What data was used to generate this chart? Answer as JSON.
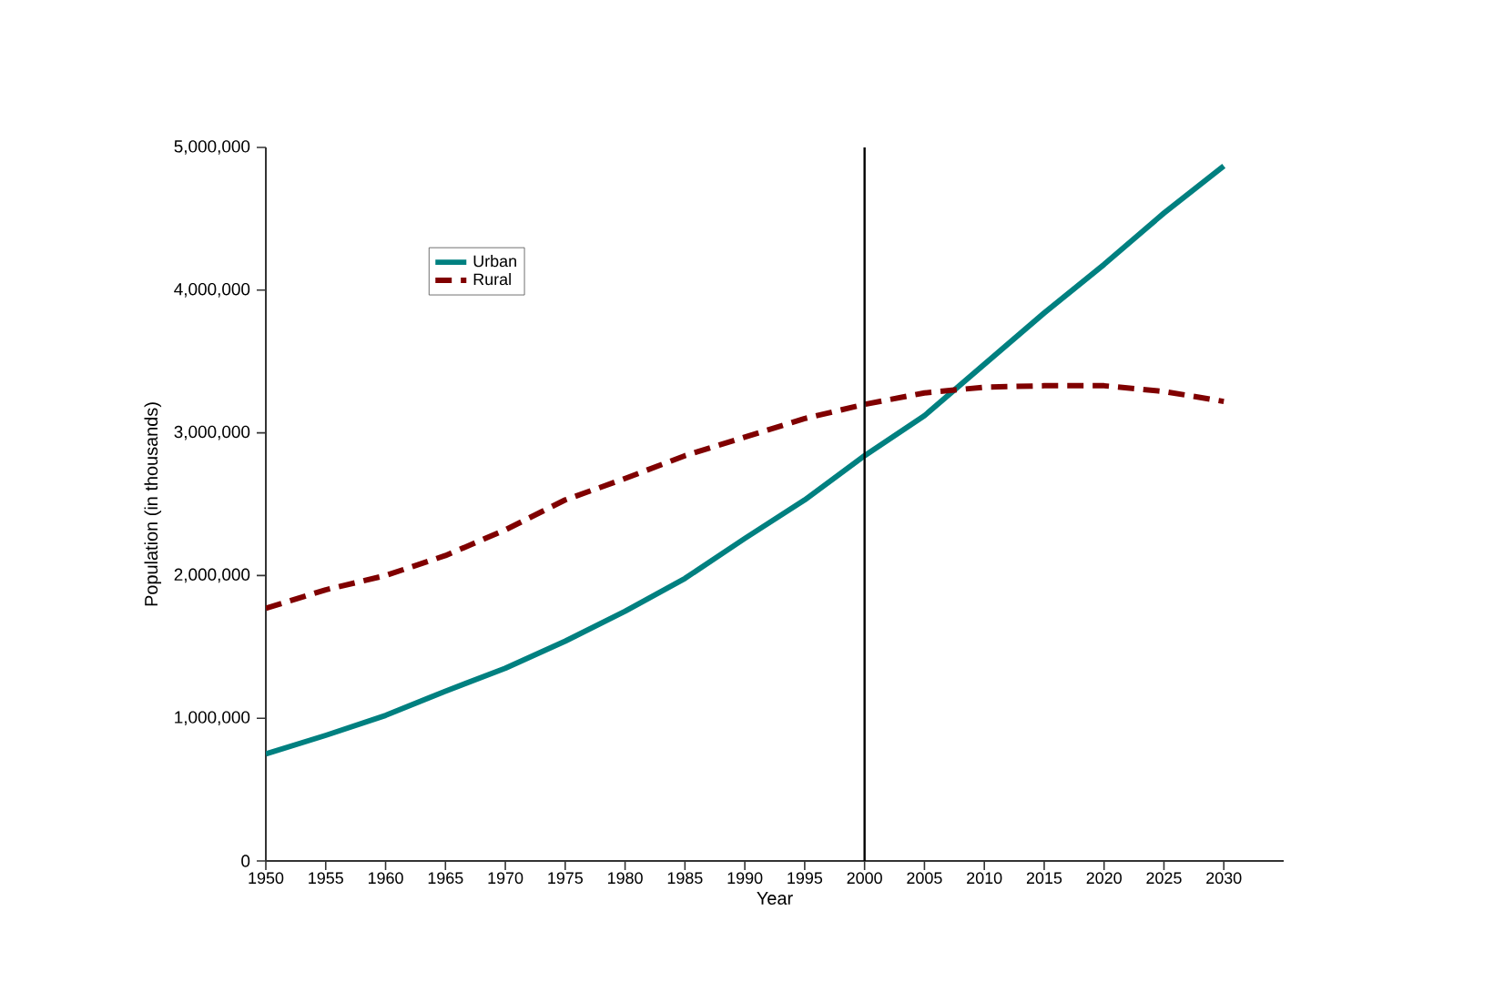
{
  "chart_data": {
    "type": "line",
    "xlabel": "Year",
    "ylabel": "Population (in thousands)",
    "x": [
      1950,
      1955,
      1960,
      1965,
      1970,
      1975,
      1980,
      1985,
      1990,
      1995,
      2000,
      2005,
      2010,
      2015,
      2020,
      2025,
      2030
    ],
    "series": [
      {
        "name": "Urban",
        "color": "#008080",
        "line_style": "solid",
        "values": [
          750000,
          880000,
          1020000,
          1190000,
          1350000,
          1540000,
          1750000,
          1980000,
          2260000,
          2530000,
          2840000,
          3120000,
          3480000,
          3840000,
          4180000,
          4540000,
          4870000
        ]
      },
      {
        "name": "Rural",
        "color": "#800000",
        "line_style": "dashed",
        "values": [
          1770000,
          1900000,
          2000000,
          2140000,
          2320000,
          2530000,
          2680000,
          2840000,
          2970000,
          3100000,
          3200000,
          3280000,
          3320000,
          3330000,
          3330000,
          3290000,
          3220000
        ]
      }
    ],
    "xlim": [
      1950,
      2035
    ],
    "ylim": [
      0,
      5000000
    ],
    "xticks": [
      1950,
      1955,
      1960,
      1965,
      1970,
      1975,
      1980,
      1985,
      1990,
      1995,
      2000,
      2005,
      2010,
      2015,
      2020,
      2025,
      2030
    ],
    "yticks": [
      0,
      {
        "value": 1000000,
        "label": "1,000,000"
      },
      {
        "value": 2000000,
        "label": "2,000,000"
      },
      {
        "value": 3000000,
        "label": "3,000,000"
      },
      {
        "value": 4000000,
        "label": "4,000,000"
      },
      {
        "value": 5000000,
        "label": "5,000,000"
      }
    ],
    "ref_lines": [
      {
        "axis": "x",
        "value": 2000,
        "color": "#000000"
      }
    ],
    "grid": false,
    "legend": "top left",
    "marker": "none"
  }
}
